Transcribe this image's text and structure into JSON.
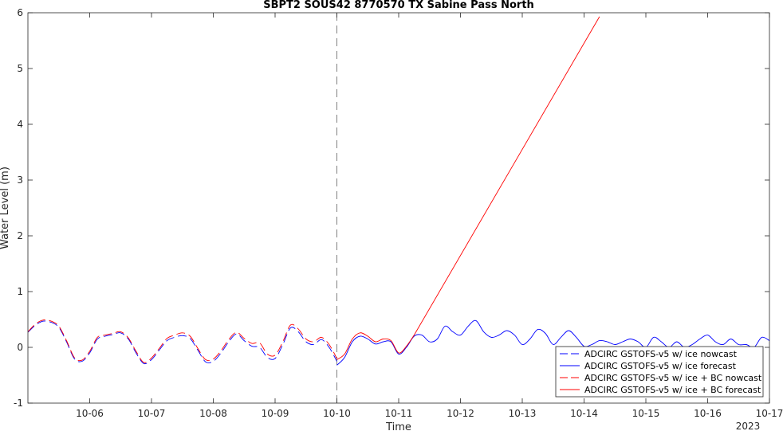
{
  "chart_data": {
    "type": "line",
    "title": "SBPT2 SOUS42 8770570 TX Sabine Pass North",
    "xlabel": "Time",
    "ylabel": "Water Level (m)",
    "year_label": "2023",
    "xlim": [
      "2023-10-05",
      "2023-10-17"
    ],
    "ylim": [
      -1,
      6
    ],
    "x_ticks": [
      "10-06",
      "10-07",
      "10-08",
      "10-09",
      "10-10",
      "10-11",
      "10-12",
      "10-13",
      "10-14",
      "10-15",
      "10-16",
      "10-17"
    ],
    "y_ticks": [
      "-1",
      "0",
      "1",
      "2",
      "3",
      "4",
      "5",
      "6"
    ],
    "grid": false,
    "legend_position": "bottom-right",
    "nowcast_forecast_divider": "2023-10-10",
    "colors": {
      "blue": "#0000ff",
      "red": "#ff0000",
      "divider": "#808080"
    },
    "series": [
      {
        "name": "ADCIRC GSTOFS-v5 w/ ice nowcast",
        "color": "#0000ff",
        "style": "dashed",
        "points": [
          [
            "2023-10-05 00:00",
            0.27
          ],
          [
            "2023-10-05 03:00",
            0.4
          ],
          [
            "2023-10-05 06:00",
            0.47
          ],
          [
            "2023-10-05 09:00",
            0.45
          ],
          [
            "2023-10-05 12:00",
            0.36
          ],
          [
            "2023-10-05 15:00",
            0.1
          ],
          [
            "2023-10-05 18:00",
            -0.2
          ],
          [
            "2023-10-05 21:00",
            -0.25
          ],
          [
            "2023-10-06 00:00",
            -0.1
          ],
          [
            "2023-10-06 03:00",
            0.15
          ],
          [
            "2023-10-06 06:00",
            0.2
          ],
          [
            "2023-10-06 09:00",
            0.23
          ],
          [
            "2023-10-06 12:00",
            0.26
          ],
          [
            "2023-10-06 15:00",
            0.15
          ],
          [
            "2023-10-06 18:00",
            -0.1
          ],
          [
            "2023-10-06 21:00",
            -0.29
          ],
          [
            "2023-10-07 00:00",
            -0.22
          ],
          [
            "2023-10-07 03:00",
            -0.05
          ],
          [
            "2023-10-07 06:00",
            0.12
          ],
          [
            "2023-10-07 09:00",
            0.18
          ],
          [
            "2023-10-07 12:00",
            0.21
          ],
          [
            "2023-10-07 15:00",
            0.16
          ],
          [
            "2023-10-07 18:00",
            -0.05
          ],
          [
            "2023-10-07 21:00",
            -0.26
          ],
          [
            "2023-10-08 00:00",
            -0.25
          ],
          [
            "2023-10-08 03:00",
            -0.1
          ],
          [
            "2023-10-08 06:00",
            0.1
          ],
          [
            "2023-10-08 09:00",
            0.24
          ],
          [
            "2023-10-08 12:00",
            0.12
          ],
          [
            "2023-10-08 15:00",
            0.02
          ],
          [
            "2023-10-08 18:00",
            0.0
          ],
          [
            "2023-10-08 21:00",
            -0.18
          ],
          [
            "2023-10-09 00:00",
            -0.2
          ],
          [
            "2023-10-09 03:00",
            0.05
          ],
          [
            "2023-10-09 06:00",
            0.35
          ],
          [
            "2023-10-09 09:00",
            0.28
          ],
          [
            "2023-10-09 12:00",
            0.1
          ],
          [
            "2023-10-09 15:00",
            0.05
          ],
          [
            "2023-10-09 18:00",
            0.14
          ],
          [
            "2023-10-09 21:00",
            0.0
          ],
          [
            "2023-10-10 00:00",
            -0.25
          ]
        ]
      },
      {
        "name": "ADCIRC GSTOFS-v5 w/ ice forecast",
        "color": "#0000ff",
        "style": "solid",
        "points": [
          [
            "2023-10-10 00:00",
            -0.32
          ],
          [
            "2023-10-10 03:00",
            -0.18
          ],
          [
            "2023-10-10 06:00",
            0.1
          ],
          [
            "2023-10-10 09:00",
            0.2
          ],
          [
            "2023-10-10 12:00",
            0.15
          ],
          [
            "2023-10-10 15:00",
            0.06
          ],
          [
            "2023-10-10 18:00",
            0.1
          ],
          [
            "2023-10-10 21:00",
            0.1
          ],
          [
            "2023-10-11 00:00",
            -0.12
          ],
          [
            "2023-10-11 03:00",
            0.0
          ],
          [
            "2023-10-11 06:00",
            0.2
          ],
          [
            "2023-10-11 09:00",
            0.22
          ],
          [
            "2023-10-11 12:00",
            0.1
          ],
          [
            "2023-10-11 15:00",
            0.15
          ],
          [
            "2023-10-11 18:00",
            0.38
          ],
          [
            "2023-10-11 21:00",
            0.28
          ],
          [
            "2023-10-12 00:00",
            0.22
          ],
          [
            "2023-10-12 03:00",
            0.38
          ],
          [
            "2023-10-12 06:00",
            0.48
          ],
          [
            "2023-10-12 09:00",
            0.28
          ],
          [
            "2023-10-12 12:00",
            0.18
          ],
          [
            "2023-10-12 15:00",
            0.22
          ],
          [
            "2023-10-12 18:00",
            0.3
          ],
          [
            "2023-10-12 21:00",
            0.22
          ],
          [
            "2023-10-13 00:00",
            0.05
          ],
          [
            "2023-10-13 03:00",
            0.15
          ],
          [
            "2023-10-13 06:00",
            0.32
          ],
          [
            "2023-10-13 09:00",
            0.25
          ],
          [
            "2023-10-13 12:00",
            0.05
          ],
          [
            "2023-10-13 15:00",
            0.18
          ],
          [
            "2023-10-13 18:00",
            0.3
          ],
          [
            "2023-10-13 21:00",
            0.18
          ],
          [
            "2023-10-14 00:00",
            0.02
          ],
          [
            "2023-10-14 03:00",
            0.05
          ],
          [
            "2023-10-14 06:00",
            0.12
          ],
          [
            "2023-10-14 09:00",
            0.1
          ],
          [
            "2023-10-14 12:00",
            0.05
          ],
          [
            "2023-10-14 15:00",
            0.1
          ],
          [
            "2023-10-14 18:00",
            0.15
          ],
          [
            "2023-10-14 21:00",
            0.1
          ],
          [
            "2023-10-15 00:00",
            0.0
          ],
          [
            "2023-10-15 03:00",
            0.18
          ],
          [
            "2023-10-15 06:00",
            0.1
          ],
          [
            "2023-10-15 09:00",
            0.0
          ],
          [
            "2023-10-15 12:00",
            0.1
          ],
          [
            "2023-10-15 15:00",
            0.0
          ],
          [
            "2023-10-15 18:00",
            0.05
          ],
          [
            "2023-10-15 21:00",
            0.15
          ],
          [
            "2023-10-16 00:00",
            0.22
          ],
          [
            "2023-10-16 03:00",
            0.1
          ],
          [
            "2023-10-16 06:00",
            0.05
          ],
          [
            "2023-10-16 09:00",
            0.15
          ],
          [
            "2023-10-16 12:00",
            0.05
          ],
          [
            "2023-10-16 15:00",
            0.05
          ],
          [
            "2023-10-16 18:00",
            0.0
          ],
          [
            "2023-10-16 21:00",
            0.18
          ],
          [
            "2023-10-17 00:00",
            0.12
          ]
        ]
      },
      {
        "name": "ADCIRC GSTOFS-v5 w/ ice + BC nowcast",
        "color": "#ff0000",
        "style": "dashed",
        "points": [
          [
            "2023-10-05 00:00",
            0.28
          ],
          [
            "2023-10-05 03:00",
            0.42
          ],
          [
            "2023-10-05 06:00",
            0.49
          ],
          [
            "2023-10-05 09:00",
            0.47
          ],
          [
            "2023-10-05 12:00",
            0.38
          ],
          [
            "2023-10-05 15:00",
            0.12
          ],
          [
            "2023-10-05 18:00",
            -0.18
          ],
          [
            "2023-10-05 21:00",
            -0.23
          ],
          [
            "2023-10-06 00:00",
            -0.07
          ],
          [
            "2023-10-06 03:00",
            0.18
          ],
          [
            "2023-10-06 06:00",
            0.22
          ],
          [
            "2023-10-06 09:00",
            0.25
          ],
          [
            "2023-10-06 12:00",
            0.28
          ],
          [
            "2023-10-06 15:00",
            0.17
          ],
          [
            "2023-10-06 18:00",
            -0.07
          ],
          [
            "2023-10-06 21:00",
            -0.27
          ],
          [
            "2023-10-07 00:00",
            -0.19
          ],
          [
            "2023-10-07 03:00",
            -0.02
          ],
          [
            "2023-10-07 06:00",
            0.16
          ],
          [
            "2023-10-07 09:00",
            0.22
          ],
          [
            "2023-10-07 12:00",
            0.26
          ],
          [
            "2023-10-07 15:00",
            0.2
          ],
          [
            "2023-10-07 18:00",
            -0.02
          ],
          [
            "2023-10-07 21:00",
            -0.22
          ],
          [
            "2023-10-08 00:00",
            -0.21
          ],
          [
            "2023-10-08 03:00",
            -0.06
          ],
          [
            "2023-10-08 06:00",
            0.14
          ],
          [
            "2023-10-08 09:00",
            0.27
          ],
          [
            "2023-10-08 12:00",
            0.16
          ],
          [
            "2023-10-08 15:00",
            0.07
          ],
          [
            "2023-10-08 18:00",
            0.08
          ],
          [
            "2023-10-08 21:00",
            -0.12
          ],
          [
            "2023-10-09 00:00",
            -0.14
          ],
          [
            "2023-10-09 03:00",
            0.1
          ],
          [
            "2023-10-09 06:00",
            0.4
          ],
          [
            "2023-10-09 09:00",
            0.33
          ],
          [
            "2023-10-09 12:00",
            0.15
          ],
          [
            "2023-10-09 15:00",
            0.1
          ],
          [
            "2023-10-09 18:00",
            0.18
          ],
          [
            "2023-10-09 21:00",
            0.05
          ],
          [
            "2023-10-10 00:00",
            -0.2
          ]
        ]
      },
      {
        "name": "ADCIRC GSTOFS-v5 w/ ice + BC forecast",
        "color": "#ff0000",
        "style": "solid",
        "points": [
          [
            "2023-10-10 00:00",
            -0.22
          ],
          [
            "2023-10-10 03:00",
            -0.12
          ],
          [
            "2023-10-10 06:00",
            0.15
          ],
          [
            "2023-10-10 09:00",
            0.26
          ],
          [
            "2023-10-10 12:00",
            0.2
          ],
          [
            "2023-10-10 15:00",
            0.1
          ],
          [
            "2023-10-10 18:00",
            0.15
          ],
          [
            "2023-10-10 21:00",
            0.12
          ],
          [
            "2023-10-11 00:00",
            -0.1
          ],
          [
            "2023-10-11 03:00",
            0.02
          ],
          [
            "2023-10-11 06:00",
            0.22
          ],
          [
            "2023-10-14 06:00",
            5.93
          ]
        ]
      }
    ]
  }
}
